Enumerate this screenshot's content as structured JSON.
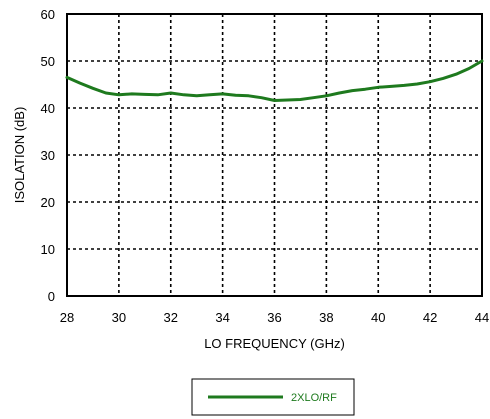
{
  "chart_data": {
    "type": "line",
    "xlabel": "LO FREQUENCY (GHz)",
    "ylabel": "ISOLATION (dB)",
    "xlim": [
      28,
      44
    ],
    "ylim": [
      0,
      60
    ],
    "xticks": [
      28,
      30,
      32,
      34,
      36,
      38,
      40,
      42,
      44
    ],
    "yticks": [
      0,
      10,
      20,
      30,
      40,
      50,
      60
    ],
    "grid": true,
    "grid_style": "dotted",
    "legend_position": "bottom-center",
    "series": [
      {
        "name": "2XLO/RF",
        "color": "#1e7a1e",
        "x": [
          28,
          28.5,
          29,
          29.5,
          30,
          30.5,
          31,
          31.5,
          32,
          32.5,
          33,
          33.5,
          34,
          34.5,
          35,
          35.5,
          36,
          36.5,
          37,
          37.5,
          38,
          38.5,
          39,
          39.5,
          40,
          40.5,
          41,
          41.5,
          42,
          42.5,
          43,
          43.5,
          44
        ],
        "y": [
          46.5,
          45.3,
          44.2,
          43.2,
          42.8,
          43.0,
          42.9,
          42.8,
          43.2,
          42.8,
          42.6,
          42.8,
          43.0,
          42.7,
          42.6,
          42.2,
          41.6,
          41.7,
          41.8,
          42.2,
          42.6,
          43.2,
          43.7,
          44.0,
          44.4,
          44.6,
          44.8,
          45.1,
          45.6,
          46.3,
          47.2,
          48.4,
          50.0
        ]
      }
    ]
  }
}
